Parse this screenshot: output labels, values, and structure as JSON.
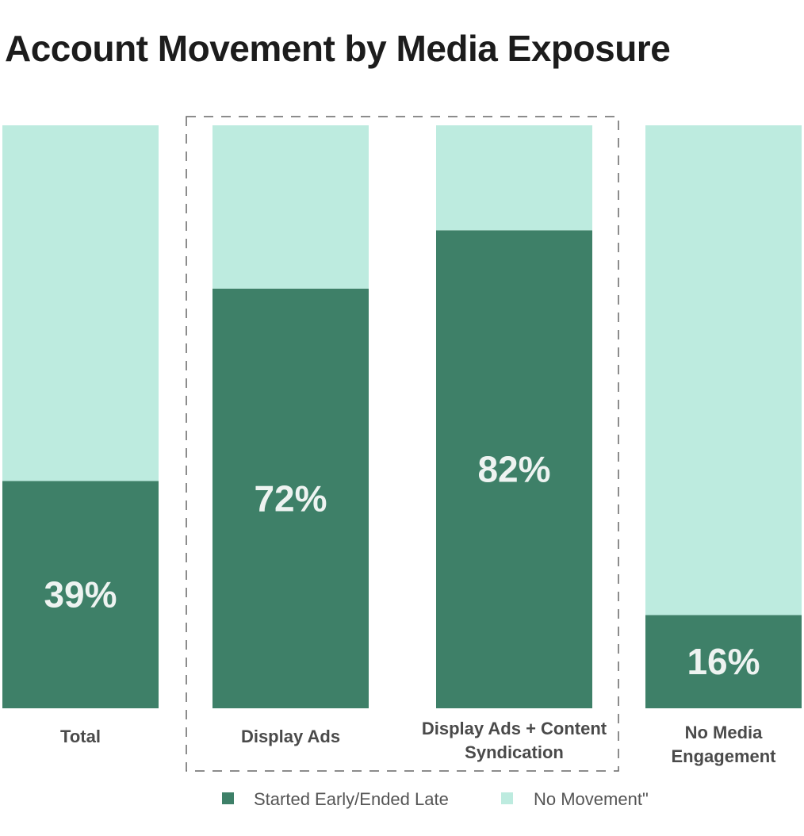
{
  "chart_data": {
    "type": "bar",
    "stacked": true,
    "title": "Account Movement by Media Exposure",
    "categories": [
      [
        "Total"
      ],
      [
        "Display Ads"
      ],
      [
        "Display Ads + Content",
        "Syndication"
      ],
      [
        "No Media",
        "Engagement"
      ]
    ],
    "series": [
      {
        "name": "Started Early/Ended Late",
        "color": "#3e8068",
        "values": [
          39,
          72,
          82,
          16
        ]
      },
      {
        "name": "No Movement\"",
        "color": "#bdebdf",
        "values": [
          61,
          28,
          18,
          84
        ]
      }
    ],
    "data_labels": [
      "39%",
      "72%",
      "82%",
      "16%"
    ],
    "ylim": [
      0,
      100
    ],
    "highlight_group": [
      1,
      2
    ],
    "legend_position": "bottom-center",
    "grid": false
  }
}
